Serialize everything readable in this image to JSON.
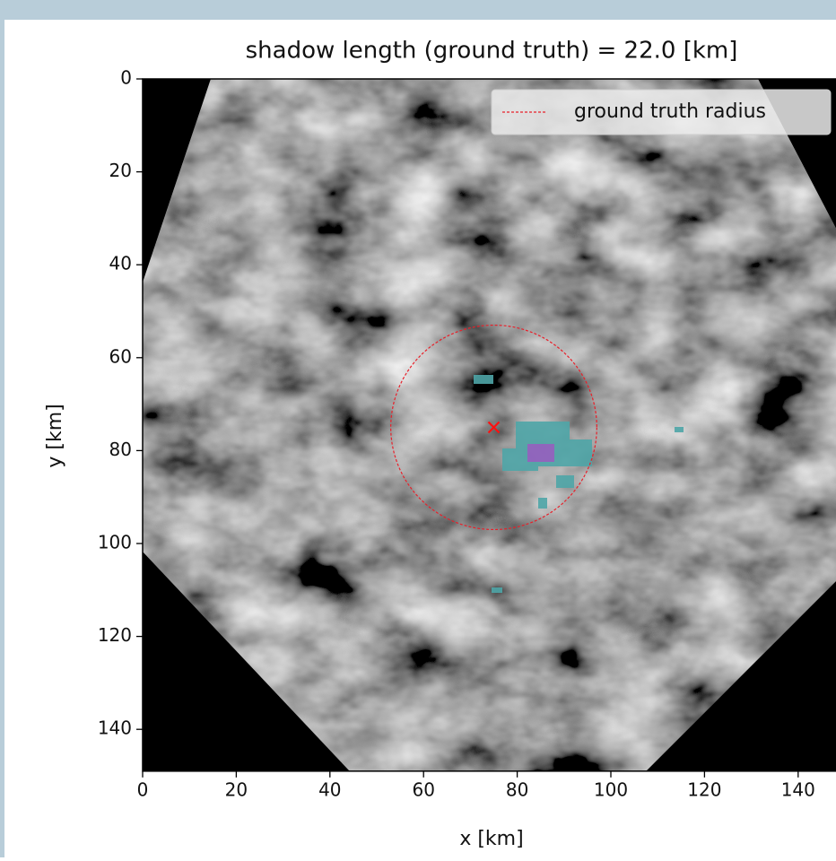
{
  "chart_data": {
    "type": "image",
    "title": "shadow length (ground truth) = 22.0 [km]",
    "xlabel": "x [km]",
    "ylabel": "y [km]",
    "xlim": [
      0,
      149
    ],
    "ylim": [
      149,
      0
    ],
    "xticks": [
      0,
      20,
      40,
      60,
      80,
      100,
      120,
      140
    ],
    "yticks": [
      0,
      20,
      40,
      60,
      80,
      100,
      120,
      140
    ],
    "circle": {
      "name": "ground truth radius",
      "color": "#e8202a",
      "center": [
        75,
        75
      ],
      "radius": 22
    },
    "marker": {
      "color": "#ff1010",
      "x": 75,
      "y": 75
    }
  }
}
